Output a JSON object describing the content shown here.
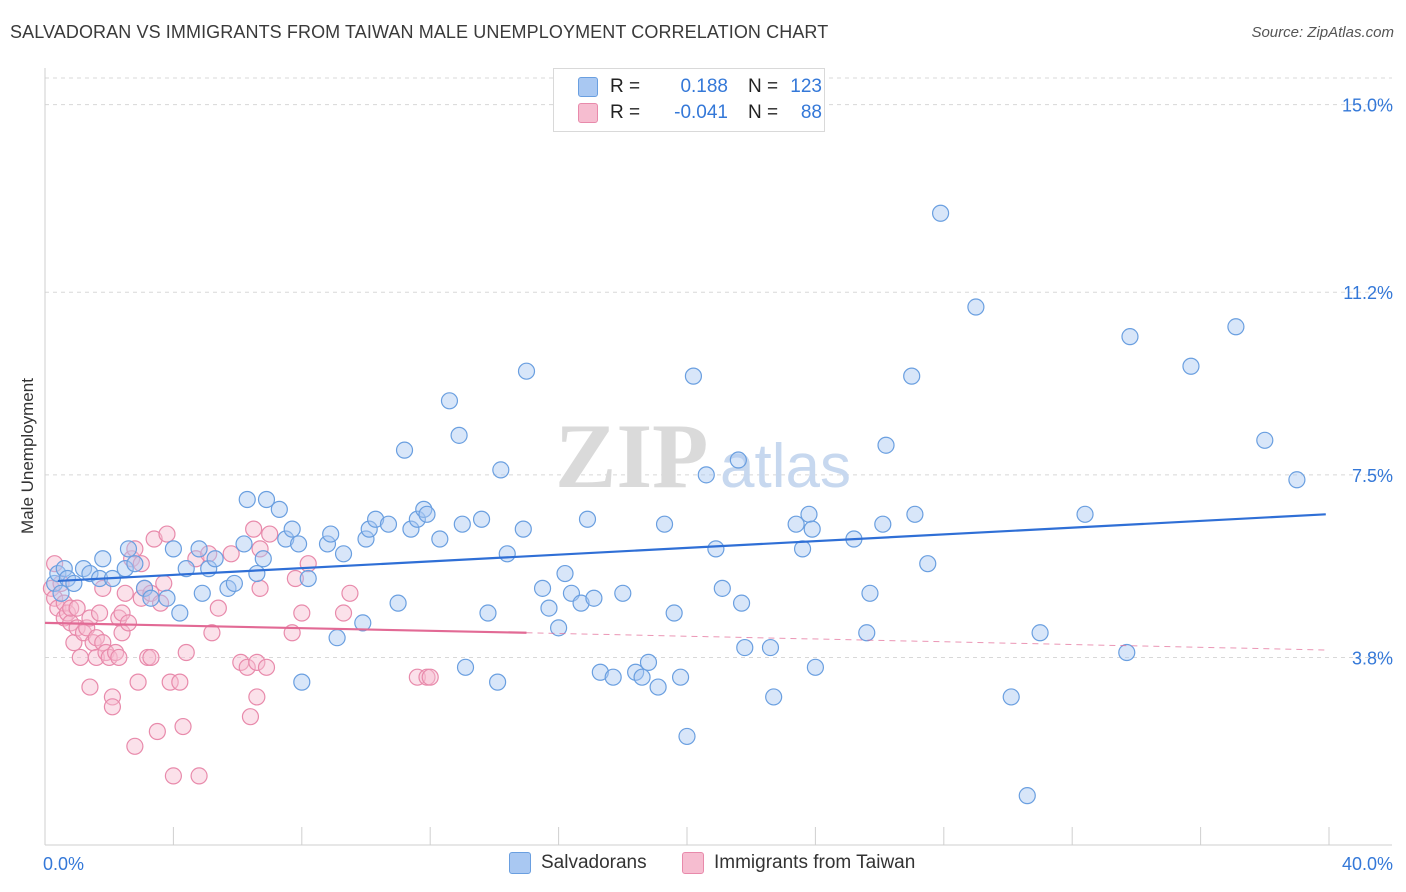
{
  "title": "SALVADORAN VS IMMIGRANTS FROM TAIWAN MALE UNEMPLOYMENT CORRELATION CHART",
  "source": "Source: ZipAtlas.com",
  "watermark": {
    "zip": "ZIP",
    "atlas": "atlas"
  },
  "legend": {
    "rows": [
      {
        "r_label": "R =",
        "r_value": "0.188",
        "n_label": "N =",
        "n_value": "123"
      },
      {
        "r_label": "R =",
        "r_value": "-0.041",
        "n_label": "N =",
        "n_value": "88"
      }
    ]
  },
  "bottom_legend": [
    {
      "label": "Salvadorans"
    },
    {
      "label": "Immigrants from Taiwan"
    }
  ],
  "chart_data": {
    "type": "scatter",
    "title": "SALVADORAN VS IMMIGRANTS FROM TAIWAN MALE UNEMPLOYMENT CORRELATION CHART",
    "xlabel": "",
    "ylabel": "Male Unemployment",
    "xlim": [
      0,
      40
    ],
    "ylim": [
      0,
      15.5
    ],
    "x_tick_labels": [
      "0.0%",
      "40.0%"
    ],
    "y_ticks": [
      3.8,
      7.5,
      11.2,
      15.0
    ],
    "y_tick_labels": [
      "3.8%",
      "7.5%",
      "11.2%",
      "15.0%"
    ],
    "colors": {
      "salvadorans_fill": "#a9c8f2",
      "salvadorans_stroke": "#6a9fe0",
      "salvadorans_line": "#2f6fd6",
      "taiwan_fill": "#f6bdd0",
      "taiwan_stroke": "#e88aab",
      "taiwan_line": "#e26a95",
      "tick_label": "#3478d8",
      "grid": "#d8d8d8"
    },
    "series": [
      {
        "name": "Salvadorans",
        "points": [
          [
            0.3,
            5.3
          ],
          [
            0.4,
            5.5
          ],
          [
            0.5,
            5.1
          ],
          [
            0.6,
            5.6
          ],
          [
            0.7,
            5.4
          ],
          [
            0.9,
            5.3
          ],
          [
            1.2,
            5.6
          ],
          [
            1.4,
            5.5
          ],
          [
            1.7,
            5.4
          ],
          [
            1.8,
            5.8
          ],
          [
            2.1,
            5.4
          ],
          [
            2.5,
            5.6
          ],
          [
            2.6,
            6.0
          ],
          [
            2.8,
            5.7
          ],
          [
            3.1,
            5.2
          ],
          [
            3.3,
            5.0
          ],
          [
            3.8,
            5.0
          ],
          [
            4.0,
            6.0
          ],
          [
            4.2,
            4.7
          ],
          [
            4.4,
            5.6
          ],
          [
            4.8,
            6.0
          ],
          [
            4.9,
            5.1
          ],
          [
            5.1,
            5.6
          ],
          [
            5.3,
            5.8
          ],
          [
            5.7,
            5.2
          ],
          [
            5.9,
            5.3
          ],
          [
            6.2,
            6.1
          ],
          [
            6.3,
            7.0
          ],
          [
            6.6,
            5.5
          ],
          [
            6.8,
            5.8
          ],
          [
            6.9,
            7.0
          ],
          [
            7.3,
            6.8
          ],
          [
            7.5,
            6.2
          ],
          [
            7.7,
            6.4
          ],
          [
            7.9,
            6.1
          ],
          [
            8.0,
            3.3
          ],
          [
            8.2,
            5.4
          ],
          [
            8.8,
            6.1
          ],
          [
            8.9,
            6.3
          ],
          [
            9.1,
            4.2
          ],
          [
            9.3,
            5.9
          ],
          [
            9.9,
            4.5
          ],
          [
            10.0,
            6.2
          ],
          [
            10.1,
            6.4
          ],
          [
            10.3,
            6.6
          ],
          [
            10.7,
            6.5
          ],
          [
            11.0,
            4.9
          ],
          [
            11.2,
            8.0
          ],
          [
            11.4,
            6.4
          ],
          [
            11.6,
            6.6
          ],
          [
            11.8,
            6.8
          ],
          [
            11.9,
            6.7
          ],
          [
            12.3,
            6.2
          ],
          [
            12.6,
            9.0
          ],
          [
            12.9,
            8.3
          ],
          [
            13.0,
            6.5
          ],
          [
            13.1,
            3.6
          ],
          [
            13.6,
            6.6
          ],
          [
            13.8,
            4.7
          ],
          [
            14.1,
            3.3
          ],
          [
            14.2,
            7.6
          ],
          [
            14.4,
            5.9
          ],
          [
            14.9,
            6.4
          ],
          [
            15.0,
            9.6
          ],
          [
            15.5,
            5.2
          ],
          [
            15.7,
            4.8
          ],
          [
            16.0,
            4.4
          ],
          [
            16.2,
            5.5
          ],
          [
            16.4,
            5.1
          ],
          [
            16.7,
            4.9
          ],
          [
            16.9,
            6.6
          ],
          [
            17.1,
            5.0
          ],
          [
            17.3,
            3.5
          ],
          [
            17.7,
            3.4
          ],
          [
            18.0,
            5.1
          ],
          [
            18.4,
            3.5
          ],
          [
            18.6,
            3.4
          ],
          [
            18.8,
            3.7
          ],
          [
            19.1,
            3.2
          ],
          [
            19.3,
            6.5
          ],
          [
            19.6,
            4.7
          ],
          [
            19.8,
            3.4
          ],
          [
            20.0,
            2.2
          ],
          [
            20.2,
            9.5
          ],
          [
            20.6,
            7.5
          ],
          [
            20.9,
            6.0
          ],
          [
            21.1,
            5.2
          ],
          [
            21.6,
            7.8
          ],
          [
            21.7,
            4.9
          ],
          [
            21.8,
            4.0
          ],
          [
            22.6,
            4.0
          ],
          [
            22.7,
            3.0
          ],
          [
            23.4,
            6.5
          ],
          [
            23.6,
            6.0
          ],
          [
            23.8,
            6.7
          ],
          [
            23.9,
            6.4
          ],
          [
            24.0,
            3.6
          ],
          [
            25.2,
            6.2
          ],
          [
            25.6,
            4.3
          ],
          [
            25.7,
            5.1
          ],
          [
            26.1,
            6.5
          ],
          [
            26.2,
            8.1
          ],
          [
            27.0,
            9.5
          ],
          [
            27.1,
            6.7
          ],
          [
            27.5,
            5.7
          ],
          [
            27.9,
            12.8
          ],
          [
            29.0,
            10.9
          ],
          [
            30.1,
            3.0
          ],
          [
            30.6,
            1.0
          ],
          [
            31.0,
            4.3
          ],
          [
            32.4,
            6.7
          ],
          [
            33.7,
            3.9
          ],
          [
            33.8,
            10.3
          ],
          [
            35.7,
            9.7
          ],
          [
            37.1,
            10.5
          ],
          [
            38.0,
            8.2
          ],
          [
            39.0,
            7.4
          ]
        ]
      },
      {
        "name": "Immigrants from Taiwan",
        "points": [
          [
            0.2,
            5.2
          ],
          [
            0.3,
            5.0
          ],
          [
            0.3,
            5.7
          ],
          [
            0.4,
            4.8
          ],
          [
            0.5,
            5.3
          ],
          [
            0.6,
            4.6
          ],
          [
            0.6,
            4.9
          ],
          [
            0.7,
            4.7
          ],
          [
            0.8,
            4.5
          ],
          [
            0.8,
            4.8
          ],
          [
            0.9,
            4.1
          ],
          [
            1.0,
            4.4
          ],
          [
            1.0,
            4.8
          ],
          [
            1.1,
            3.8
          ],
          [
            1.2,
            4.3
          ],
          [
            1.3,
            4.4
          ],
          [
            1.4,
            3.2
          ],
          [
            1.4,
            4.6
          ],
          [
            1.5,
            4.1
          ],
          [
            1.6,
            4.2
          ],
          [
            1.6,
            3.8
          ],
          [
            1.7,
            4.7
          ],
          [
            1.8,
            4.1
          ],
          [
            1.8,
            5.2
          ],
          [
            1.9,
            3.9
          ],
          [
            2.0,
            3.8
          ],
          [
            2.1,
            3.0
          ],
          [
            2.1,
            2.8
          ],
          [
            2.2,
            3.9
          ],
          [
            2.3,
            4.6
          ],
          [
            2.3,
            3.8
          ],
          [
            2.4,
            4.7
          ],
          [
            2.4,
            4.3
          ],
          [
            2.5,
            5.1
          ],
          [
            2.6,
            4.5
          ],
          [
            2.7,
            5.8
          ],
          [
            2.8,
            2.0
          ],
          [
            2.8,
            6.0
          ],
          [
            2.9,
            3.3
          ],
          [
            3.0,
            5.7
          ],
          [
            3.0,
            5.0
          ],
          [
            3.1,
            5.2
          ],
          [
            3.2,
            3.8
          ],
          [
            3.3,
            5.1
          ],
          [
            3.3,
            3.8
          ],
          [
            3.4,
            6.2
          ],
          [
            3.5,
            2.3
          ],
          [
            3.6,
            4.9
          ],
          [
            3.7,
            5.3
          ],
          [
            3.8,
            6.3
          ],
          [
            3.9,
            3.3
          ],
          [
            4.0,
            1.4
          ],
          [
            4.2,
            3.3
          ],
          [
            4.3,
            2.4
          ],
          [
            4.4,
            3.9
          ],
          [
            4.7,
            5.8
          ],
          [
            4.8,
            1.4
          ],
          [
            5.1,
            5.9
          ],
          [
            5.2,
            4.3
          ],
          [
            5.4,
            4.8
          ],
          [
            5.8,
            5.9
          ],
          [
            6.1,
            3.7
          ],
          [
            6.3,
            3.6
          ],
          [
            6.4,
            2.6
          ],
          [
            6.5,
            6.4
          ],
          [
            6.6,
            3.0
          ],
          [
            6.6,
            3.7
          ],
          [
            6.7,
            6.0
          ],
          [
            6.7,
            5.2
          ],
          [
            6.9,
            3.6
          ],
          [
            7.0,
            6.3
          ],
          [
            7.7,
            4.3
          ],
          [
            7.8,
            5.4
          ],
          [
            8.0,
            4.7
          ],
          [
            8.2,
            5.7
          ],
          [
            9.3,
            4.7
          ],
          [
            9.5,
            5.1
          ],
          [
            11.6,
            3.4
          ],
          [
            11.9,
            3.4
          ],
          [
            12.0,
            3.4
          ]
        ]
      }
    ],
    "trendlines": [
      {
        "series": "Salvadorans",
        "x": [
          0.4,
          39.9
        ],
        "y": [
          5.35,
          6.7
        ],
        "style": "solid"
      },
      {
        "series": "Immigrants from Taiwan",
        "x": [
          0.0,
          15.0
        ],
        "y": [
          4.5,
          4.3
        ],
        "style": "solid"
      },
      {
        "series": "Immigrants from Taiwan",
        "x": [
          15.0,
          40.0
        ],
        "y": [
          4.3,
          3.95
        ],
        "style": "dashed"
      }
    ]
  }
}
